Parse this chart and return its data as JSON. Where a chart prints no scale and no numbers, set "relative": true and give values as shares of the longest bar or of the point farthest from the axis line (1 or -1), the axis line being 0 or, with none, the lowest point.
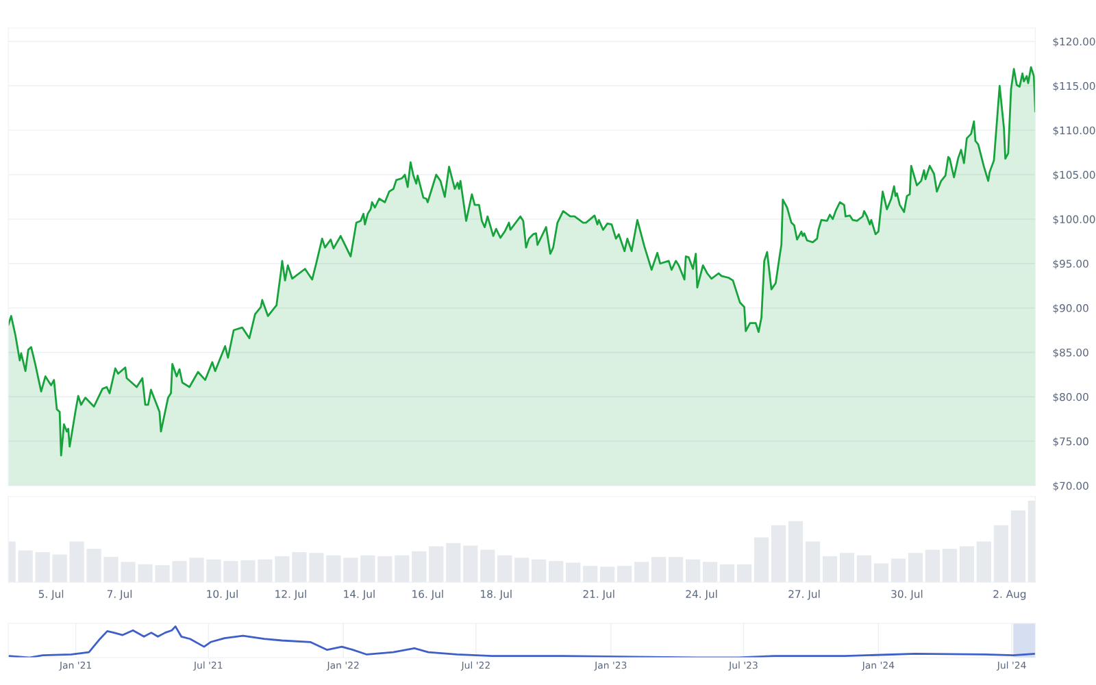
{
  "chart_data": [
    {
      "type": "area",
      "xlim": [
        "2024-07-03T18:00",
        "2024-08-02T18:00"
      ],
      "ylim": [
        70,
        121.5
      ],
      "yticks": [
        {
          "value": 70,
          "label": "$70.00"
        },
        {
          "value": 75,
          "label": "$75.00"
        },
        {
          "value": 80,
          "label": "$80.00"
        },
        {
          "value": 85,
          "label": "$85.00"
        },
        {
          "value": 90,
          "label": "$90.00"
        },
        {
          "value": 95,
          "label": "$95.00"
        },
        {
          "value": 100,
          "label": "$100.00"
        },
        {
          "value": 105,
          "label": "$105.00"
        },
        {
          "value": 110,
          "label": "$110.00"
        },
        {
          "value": 115,
          "label": "$115.00"
        },
        {
          "value": 120,
          "label": "$120.00"
        }
      ],
      "grid": "y",
      "tick_labels": "y",
      "series": [
        {
          "color": "#16a33c",
          "x": [
            "2024-07-03T18:00",
            "2024-07-03T20:00",
            "2024-07-03T23:00",
            "2024-07-04T02:00",
            "2024-07-04T03:00",
            "2024-07-04T06:00",
            "2024-07-04T08:00",
            "2024-07-04T10:00",
            "2024-07-04T13:00",
            "2024-07-04T17:00",
            "2024-07-04T20:00",
            "2024-07-05T00:00",
            "2024-07-05T02:00",
            "2024-07-05T04:00",
            "2024-07-05T06:00",
            "2024-07-05T07:00",
            "2024-07-05T09:00",
            "2024-07-05T11:00",
            "2024-07-05T12:00",
            "2024-07-05T13:00",
            "2024-07-05T17:00",
            "2024-07-05T19:00",
            "2024-07-05T21:00",
            "2024-07-06T00:00",
            "2024-07-06T06:00",
            "2024-07-06T12:00",
            "2024-07-06T15:00",
            "2024-07-06T17:00",
            "2024-07-06T21:00",
            "2024-07-06T23:00",
            "2024-07-07T04:00",
            "2024-07-07T05:00",
            "2024-07-07T12:00",
            "2024-07-07T16:00",
            "2024-07-07T18:00",
            "2024-07-07T20:00",
            "2024-07-07T22:00",
            "2024-07-08T04:00",
            "2024-07-08T05:00",
            "2024-07-08T10:00",
            "2024-07-08T12:00",
            "2024-07-08T13:00",
            "2024-07-08T16:00",
            "2024-07-08T18:00",
            "2024-07-08T20:00",
            "2024-07-09T01:00",
            "2024-07-09T07:00",
            "2024-07-09T12:00",
            "2024-07-09T17:00",
            "2024-07-09T19:00",
            "2024-07-10T02:00",
            "2024-07-10T04:00",
            "2024-07-10T08:00",
            "2024-07-10T14:00",
            "2024-07-10T19:00",
            "2024-07-10T23:00",
            "2024-07-11T03:00",
            "2024-07-11T04:00",
            "2024-07-11T08:00",
            "2024-07-11T14:00",
            "2024-07-11T17:00",
            "2024-07-11T18:00",
            "2024-07-11T20:00",
            "2024-07-11T22:00",
            "2024-07-12T01:00",
            "2024-07-12T10:00",
            "2024-07-12T15:00",
            "2024-07-12T18:00",
            "2024-07-12T22:00",
            "2024-07-13T00:00",
            "2024-07-13T04:00",
            "2024-07-13T06:00",
            "2024-07-13T11:00",
            "2024-07-13T18:00",
            "2024-07-13T22:00",
            "2024-07-14T01:00",
            "2024-07-14T03:00",
            "2024-07-14T04:00",
            "2024-07-14T06:00",
            "2024-07-14T08:00",
            "2024-07-14T09:00",
            "2024-07-14T11:00",
            "2024-07-14T14:00",
            "2024-07-14T18:00",
            "2024-07-14T21:00",
            "2024-07-15T00:00",
            "2024-07-15T02:00",
            "2024-07-15T06:00",
            "2024-07-15T08:00",
            "2024-07-15T10:00",
            "2024-07-15T12:00",
            "2024-07-15T14:00",
            "2024-07-15T16:00",
            "2024-07-15T17:00",
            "2024-07-15T21:00",
            "2024-07-15T23:00",
            "2024-07-16T00:00",
            "2024-07-16T06:00",
            "2024-07-16T09:00",
            "2024-07-16T12:00",
            "2024-07-16T15:00",
            "2024-07-16T19:00",
            "2024-07-16T21:00",
            "2024-07-16T22:00",
            "2024-07-16T23:00",
            "2024-07-17T03:00",
            "2024-07-17T07:00",
            "2024-07-17T09:00",
            "2024-07-17T12:00",
            "2024-07-17T14:00",
            "2024-07-17T16:00",
            "2024-07-17T18:00",
            "2024-07-17T22:00",
            "2024-07-18T00:00",
            "2024-07-18T03:00",
            "2024-07-18T06:00",
            "2024-07-18T09:00",
            "2024-07-18T10:00",
            "2024-07-18T17:00",
            "2024-07-18T19:00",
            "2024-07-18T21:00",
            "2024-07-18T23:00",
            "2024-07-19T02:00",
            "2024-07-19T04:00",
            "2024-07-19T05:00",
            "2024-07-19T11:00",
            "2024-07-19T14:00",
            "2024-07-19T16:00",
            "2024-07-19T19:00",
            "2024-07-19T23:00",
            "2024-07-20T04:00",
            "2024-07-20T07:00",
            "2024-07-20T13:00",
            "2024-07-20T15:00",
            "2024-07-20T21:00",
            "2024-07-20T23:00",
            "2024-07-21T00:00",
            "2024-07-21T03:00",
            "2024-07-21T06:00",
            "2024-07-21T09:00",
            "2024-07-21T12:00",
            "2024-07-21T14:00",
            "2024-07-21T18:00",
            "2024-07-21T20:00",
            "2024-07-21T23:00",
            "2024-07-22T03:00",
            "2024-07-22T08:00",
            "2024-07-22T13:00",
            "2024-07-22T17:00",
            "2024-07-22T19:00",
            "2024-07-23T01:00",
            "2024-07-23T03:00",
            "2024-07-23T06:00",
            "2024-07-23T08:00",
            "2024-07-23T12:00",
            "2024-07-23T13:00",
            "2024-07-23T15:00",
            "2024-07-23T18:00",
            "2024-07-23T20:00",
            "2024-07-23T21:00",
            "2024-07-24T01:00",
            "2024-07-24T04:00",
            "2024-07-24T07:00",
            "2024-07-24T12:00",
            "2024-07-24T14:00",
            "2024-07-24T19:00",
            "2024-07-24T22:00",
            "2024-07-25T01:00",
            "2024-07-25T03:00",
            "2024-07-25T06:00",
            "2024-07-25T07:00",
            "2024-07-25T10:00",
            "2024-07-25T14:00",
            "2024-07-25T16:00",
            "2024-07-25T18:00",
            "2024-07-25T20:00",
            "2024-07-25T22:00",
            "2024-07-26T01:00",
            "2024-07-26T04:00",
            "2024-07-26T07:00",
            "2024-07-26T08:00",
            "2024-07-26T09:00",
            "2024-07-26T12:00",
            "2024-07-26T15:00",
            "2024-07-26T17:00",
            "2024-07-26T19:00",
            "2024-07-26T22:00",
            "2024-07-26T23:00",
            "2024-07-27T00:00",
            "2024-07-27T02:00",
            "2024-07-27T06:00",
            "2024-07-27T09:00",
            "2024-07-27T10:00",
            "2024-07-27T12:00",
            "2024-07-27T16:00",
            "2024-07-27T18:00",
            "2024-07-27T20:00",
            "2024-07-27T22:00",
            "2024-07-28T01:00",
            "2024-07-28T04:00",
            "2024-07-28T05:00",
            "2024-07-28T08:00",
            "2024-07-28T10:00",
            "2024-07-28T13:00",
            "2024-07-28T17:00",
            "2024-07-28T18:00",
            "2024-07-28T20:00",
            "2024-07-28T22:00",
            "2024-07-28T23:00",
            "2024-07-29T02:00",
            "2024-07-29T04:00",
            "2024-07-29T07:00",
            "2024-07-29T10:00",
            "2024-07-29T13:00",
            "2024-07-29T15:00",
            "2024-07-29T16:00",
            "2024-07-29T17:00",
            "2024-07-29T19:00",
            "2024-07-29T22:00",
            "2024-07-30T00:00",
            "2024-07-30T02:00",
            "2024-07-30T03:00",
            "2024-07-30T07:00",
            "2024-07-30T10:00",
            "2024-07-30T12:00",
            "2024-07-30T13:00",
            "2024-07-30T16:00",
            "2024-07-30T19:00",
            "2024-07-30T21:00",
            "2024-07-31T00:00",
            "2024-07-31T03:00",
            "2024-07-31T05:00",
            "2024-07-31T06:00",
            "2024-07-31T09:00",
            "2024-07-31T12:00",
            "2024-07-31T14:00",
            "2024-07-31T16:00",
            "2024-07-31T18:00",
            "2024-07-31T21:00",
            "2024-07-31T23:00",
            "2024-08-01T00:00",
            "2024-08-01T02:00",
            "2024-08-01T06:00",
            "2024-08-01T09:00",
            "2024-08-01T10:00",
            "2024-08-01T13:00",
            "2024-08-01T17:00",
            "2024-08-01T20:00",
            "2024-08-01T21:00",
            "2024-08-01T23:00",
            "2024-08-02T01:00",
            "2024-08-02T03:00",
            "2024-08-02T05:00",
            "2024-08-02T07:00",
            "2024-08-02T09:00",
            "2024-08-02T10:00",
            "2024-08-02T12:00",
            "2024-08-02T13:00",
            "2024-08-02T15:00",
            "2024-08-02T17:00",
            "2024-08-02T18:00"
          ],
          "values": [
            88.1,
            89.1,
            86.9,
            84.1,
            84.9,
            82.9,
            85.3,
            85.6,
            83.6,
            80.6,
            82.3,
            81.3,
            81.9,
            78.6,
            78.3,
            73.4,
            76.9,
            76.1,
            76.4,
            74.4,
            78.3,
            80.1,
            79.1,
            79.9,
            78.9,
            80.9,
            81.1,
            80.4,
            83.2,
            82.6,
            83.3,
            82.1,
            81.1,
            82.1,
            79.1,
            79.1,
            80.8,
            78.3,
            76.1,
            79.9,
            80.4,
            83.7,
            82.3,
            83.1,
            81.6,
            81.1,
            82.8,
            81.9,
            83.9,
            82.9,
            85.7,
            84.4,
            87.5,
            87.8,
            86.6,
            89.3,
            90.1,
            90.9,
            89.1,
            90.3,
            93.9,
            95.3,
            93.1,
            94.8,
            93.3,
            94.4,
            93.2,
            95.1,
            97.8,
            96.8,
            97.7,
            96.7,
            98.1,
            95.8,
            99.6,
            99.8,
            100.6,
            99.4,
            100.6,
            101.1,
            101.9,
            101.3,
            102.3,
            101.9,
            103.1,
            103.4,
            104.4,
            104.6,
            105.0,
            103.6,
            106.4,
            104.9,
            104.0,
            104.9,
            102.4,
            102.3,
            101.9,
            105.0,
            104.3,
            102.5,
            105.9,
            103.4,
            104.1,
            103.4,
            104.3,
            99.8,
            102.8,
            101.6,
            101.6,
            99.8,
            99.1,
            100.3,
            98.1,
            98.9,
            97.9,
            98.6,
            99.6,
            98.8,
            100.3,
            99.8,
            96.8,
            97.8,
            98.3,
            98.4,
            97.1,
            99.1,
            96.1,
            96.8,
            99.6,
            100.9,
            100.3,
            100.3,
            99.6,
            99.6,
            100.4,
            99.4,
            99.9,
            98.8,
            99.5,
            99.4,
            97.8,
            98.3,
            96.4,
            97.8,
            96.4,
            99.9,
            96.9,
            94.3,
            96.2,
            95.0,
            95.3,
            94.3,
            95.3,
            94.8,
            93.2,
            95.8,
            95.7,
            94.4,
            96.1,
            92.3,
            94.8,
            93.9,
            93.3,
            93.9,
            93.6,
            93.4,
            93.1,
            91.6,
            90.6,
            90.1,
            87.4,
            88.3,
            88.3,
            87.3,
            88.9,
            95.3,
            96.3,
            92.1,
            92.8,
            96.1,
            97.1,
            102.2,
            101.3,
            99.6,
            99.3,
            97.7,
            98.6,
            98.1,
            98.4,
            97.6,
            97.4,
            97.8,
            98.8,
            99.9,
            99.8,
            100.5,
            100.0,
            100.9,
            101.9,
            101.6,
            100.3,
            100.4,
            99.9,
            99.8,
            100.3,
            100.9,
            100.3,
            99.4,
            99.9,
            98.3,
            98.6,
            103.1,
            101.1,
            102.3,
            103.7,
            102.6,
            102.9,
            101.6,
            100.8,
            102.6,
            102.8,
            106.0,
            103.8,
            104.3,
            105.5,
            104.5,
            106.0,
            105.1,
            103.1,
            104.3,
            104.9,
            107.0,
            106.8,
            104.7,
            106.9,
            107.8,
            106.3,
            109.1,
            109.6,
            111.0,
            108.8,
            108.4,
            105.9,
            104.3,
            105.3,
            106.6,
            115.0,
            110.3,
            106.8,
            107.4,
            114.6,
            116.9,
            115.1,
            114.9,
            116.4,
            115.5,
            116.1,
            115.3,
            117.1,
            116.1,
            112.1
          ]
        }
      ]
    },
    {
      "type": "bar",
      "relative": true,
      "tick_labels": "x",
      "color": "#e6e9ee",
      "xlim": [
        "2024-07-03T18:00",
        "2024-08-02T18:00"
      ],
      "xticks": [
        {
          "value": "2024-07-05",
          "label": "5. Jul"
        },
        {
          "value": "2024-07-07",
          "label": "7. Jul"
        },
        {
          "value": "2024-07-10",
          "label": "10. Jul"
        },
        {
          "value": "2024-07-12",
          "label": "12. Jul"
        },
        {
          "value": "2024-07-14",
          "label": "14. Jul"
        },
        {
          "value": "2024-07-16",
          "label": "16. Jul"
        },
        {
          "value": "2024-07-18",
          "label": "18. Jul"
        },
        {
          "value": "2024-07-21",
          "label": "21. Jul"
        },
        {
          "value": "2024-07-24",
          "label": "24. Jul"
        },
        {
          "value": "2024-07-27",
          "label": "27. Jul"
        },
        {
          "value": "2024-07-30",
          "label": "30. Jul"
        },
        {
          "value": "2024-08-02",
          "label": "2. Aug"
        }
      ],
      "x": [
        "2024-07-03T18:00",
        "2024-07-04T06:00",
        "2024-07-04T18:00",
        "2024-07-05T06:00",
        "2024-07-05T18:00",
        "2024-07-06T06:00",
        "2024-07-06T18:00",
        "2024-07-07T06:00",
        "2024-07-07T18:00",
        "2024-07-08T06:00",
        "2024-07-08T18:00",
        "2024-07-09T06:00",
        "2024-07-09T18:00",
        "2024-07-10T06:00",
        "2024-07-10T18:00",
        "2024-07-11T06:00",
        "2024-07-11T18:00",
        "2024-07-12T06:00",
        "2024-07-12T18:00",
        "2024-07-13T06:00",
        "2024-07-13T18:00",
        "2024-07-14T06:00",
        "2024-07-14T18:00",
        "2024-07-15T06:00",
        "2024-07-15T18:00",
        "2024-07-16T06:00",
        "2024-07-16T18:00",
        "2024-07-17T06:00",
        "2024-07-17T18:00",
        "2024-07-18T06:00",
        "2024-07-18T18:00",
        "2024-07-19T06:00",
        "2024-07-19T18:00",
        "2024-07-20T06:00",
        "2024-07-20T18:00",
        "2024-07-21T06:00",
        "2024-07-21T18:00",
        "2024-07-22T06:00",
        "2024-07-22T18:00",
        "2024-07-23T06:00",
        "2024-07-23T18:00",
        "2024-07-24T06:00",
        "2024-07-24T18:00",
        "2024-07-25T06:00",
        "2024-07-25T18:00",
        "2024-07-26T06:00",
        "2024-07-26T18:00",
        "2024-07-27T06:00",
        "2024-07-27T18:00",
        "2024-07-28T06:00",
        "2024-07-28T18:00",
        "2024-07-29T06:00",
        "2024-07-29T18:00",
        "2024-07-30T06:00",
        "2024-07-30T18:00",
        "2024-07-31T06:00",
        "2024-07-31T18:00",
        "2024-08-01T06:00",
        "2024-08-01T18:00",
        "2024-08-02T06:00",
        "2024-08-02T18:00"
      ],
      "values": [
        0.5,
        0.39,
        0.37,
        0.34,
        0.5,
        0.41,
        0.31,
        0.25,
        0.22,
        0.21,
        0.26,
        0.3,
        0.28,
        0.26,
        0.27,
        0.28,
        0.32,
        0.37,
        0.36,
        0.33,
        0.3,
        0.33,
        0.32,
        0.33,
        0.38,
        0.44,
        0.48,
        0.45,
        0.4,
        0.33,
        0.3,
        0.28,
        0.26,
        0.24,
        0.2,
        0.19,
        0.2,
        0.25,
        0.31,
        0.31,
        0.28,
        0.25,
        0.22,
        0.22,
        0.55,
        0.7,
        0.75,
        0.5,
        0.32,
        0.36,
        0.33,
        0.23,
        0.29,
        0.36,
        0.4,
        0.41,
        0.44,
        0.5,
        0.7,
        0.88,
        1.0
      ]
    },
    {
      "type": "line",
      "relative": true,
      "tick_labels": "x",
      "grid": "x",
      "color": "#3f5fc8",
      "xlim": [
        "2020-10-01",
        "2024-08-02"
      ],
      "xticks": [
        {
          "value": "2021-01-01",
          "label": "Jan '21"
        },
        {
          "value": "2021-07-01",
          "label": "Jul '21"
        },
        {
          "value": "2022-01-01",
          "label": "Jan '22"
        },
        {
          "value": "2022-07-01",
          "label": "Jul '22"
        },
        {
          "value": "2023-01-01",
          "label": "Jan '23"
        },
        {
          "value": "2023-07-01",
          "label": "Jul '23"
        },
        {
          "value": "2024-01-01",
          "label": "Jan '24"
        },
        {
          "value": "2024-07-01",
          "label": "Jul '24"
        }
      ],
      "bands": [
        {
          "axis": "x",
          "from": "2024-07-03",
          "to": "2024-08-02",
          "color": "#ccd6ee"
        }
      ],
      "x": [
        "2020-10-02",
        "2020-10-29",
        "2020-11-17",
        "2020-12-26",
        "2021-01-19",
        "2021-02-03",
        "2021-02-13",
        "2021-02-22",
        "2021-03-06",
        "2021-03-20",
        "2021-04-04",
        "2021-04-14",
        "2021-04-23",
        "2021-05-03",
        "2021-05-12",
        "2021-05-17",
        "2021-05-25",
        "2021-06-06",
        "2021-06-25",
        "2021-07-04",
        "2021-07-23",
        "2021-08-17",
        "2021-09-15",
        "2021-10-09",
        "2021-11-17",
        "2021-12-10",
        "2021-12-30",
        "2022-01-14",
        "2022-02-02",
        "2022-03-10",
        "2022-04-08",
        "2022-04-27",
        "2022-06-05",
        "2022-07-23",
        "2022-10-28",
        "2023-02-02",
        "2023-05-07",
        "2023-06-24",
        "2023-08-12",
        "2023-11-16",
        "2024-02-20",
        "2024-05-25",
        "2024-07-03",
        "2024-08-02"
      ],
      "values": [
        0.05,
        0.0,
        0.075,
        0.1,
        0.175,
        0.6,
        0.85,
        0.8,
        0.725,
        0.875,
        0.675,
        0.8,
        0.675,
        0.8,
        0.875,
        1.0,
        0.675,
        0.6,
        0.35,
        0.5,
        0.625,
        0.7,
        0.6,
        0.55,
        0.5,
        0.25,
        0.35,
        0.25,
        0.1,
        0.175,
        0.3,
        0.175,
        0.1,
        0.05,
        0.05,
        0.025,
        0.0,
        0.0,
        0.05,
        0.05,
        0.125,
        0.1,
        0.075,
        0.125
      ]
    }
  ]
}
